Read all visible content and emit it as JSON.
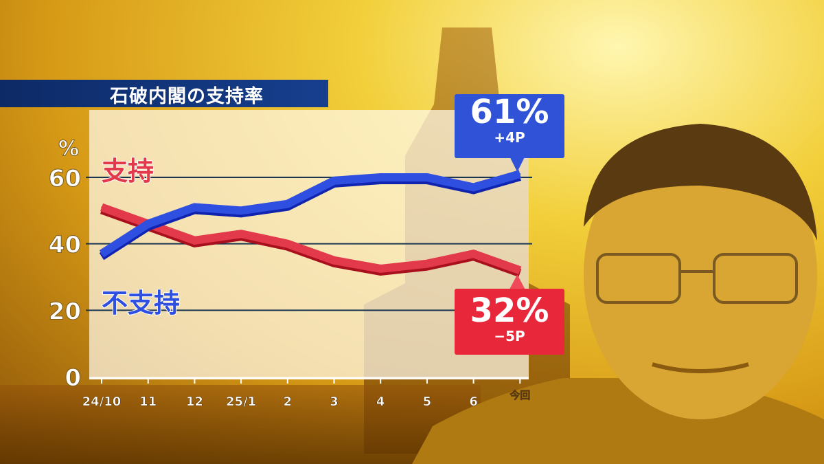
{
  "chart_data": {
    "type": "line",
    "title": "石破内閣の支持率",
    "ylabel": "%",
    "ylim": [
      0,
      60
    ],
    "yticks": [
      0,
      20,
      40,
      60
    ],
    "grid": true,
    "categories": [
      "24/10",
      "11",
      "12",
      "25/1",
      "2",
      "3",
      "4",
      "5",
      "6",
      "今回"
    ],
    "series": [
      {
        "name": "支持",
        "color": "#e23a4a",
        "values": [
          51,
          46,
          41,
          43,
          40,
          35,
          32.5,
          34,
          37,
          32
        ]
      },
      {
        "name": "不支持",
        "color": "#2f4fe0",
        "values": [
          37,
          46,
          51,
          50,
          52,
          59,
          60,
          60,
          57,
          61
        ]
      }
    ],
    "annotations": [
      {
        "series": "不支持",
        "value": "61%",
        "change": "+4P"
      },
      {
        "series": "支持",
        "value": "32%",
        "change": "−5P"
      }
    ]
  }
}
